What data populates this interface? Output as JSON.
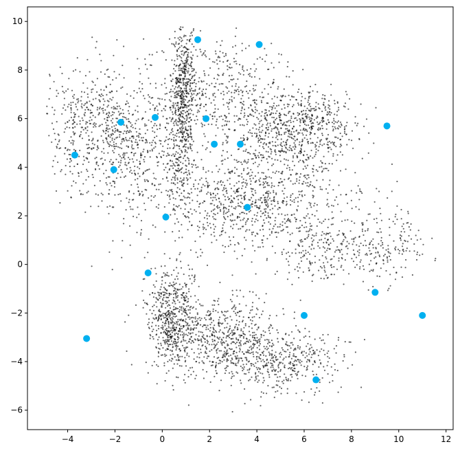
{
  "chart_data": {
    "type": "scatter",
    "title": "",
    "xlabel": "",
    "ylabel": "",
    "xlim": [
      -5.7,
      12.3
    ],
    "ylim": [
      -6.8,
      10.6
    ],
    "x_ticks": [
      -4,
      -2,
      0,
      2,
      4,
      6,
      8,
      10,
      12
    ],
    "y_ticks": [
      -6,
      -4,
      -2,
      0,
      2,
      4,
      6,
      8,
      10
    ],
    "x_tick_labels": [
      "−4",
      "−2",
      "0",
      "2",
      "4",
      "6",
      "8",
      "10",
      "12"
    ],
    "y_tick_labels": [
      "−6",
      "−4",
      "−2",
      "0",
      "2",
      "4",
      "6",
      "8",
      "10"
    ],
    "grid": false,
    "legend": "none",
    "background": {
      "description": "about 5000 small translucent black points forming an upper cluster (x ≈ -5 to 11.5, y ≈ 0 to 9.8) with a dense vertical band near x ≈ 1, and a lower cluster (x ≈ -1 to 9, y ≈ -6 to 0) densest near (0.5, -2.5)",
      "color": "#000000",
      "opacity": 0.6
    },
    "series": [
      {
        "color": "#00b0f0",
        "points": [
          {
            "x": 1.5,
            "y": 9.25
          },
          {
            "x": 4.1,
            "y": 9.05
          },
          {
            "x": -0.3,
            "y": 6.05
          },
          {
            "x": -1.75,
            "y": 5.85
          },
          {
            "x": 1.85,
            "y": 6.0
          },
          {
            "x": 9.5,
            "y": 5.7
          },
          {
            "x": 2.2,
            "y": 4.95
          },
          {
            "x": 3.3,
            "y": 4.95
          },
          {
            "x": -3.7,
            "y": 4.5
          },
          {
            "x": -2.05,
            "y": 3.9
          },
          {
            "x": 3.6,
            "y": 2.35
          },
          {
            "x": 0.15,
            "y": 1.95
          },
          {
            "x": -0.6,
            "y": -0.35
          },
          {
            "x": 9.0,
            "y": -1.15
          },
          {
            "x": 6.0,
            "y": -2.1
          },
          {
            "x": 11.0,
            "y": -2.1
          },
          {
            "x": -3.2,
            "y": -3.05
          },
          {
            "x": 6.5,
            "y": -4.75
          }
        ]
      }
    ]
  }
}
